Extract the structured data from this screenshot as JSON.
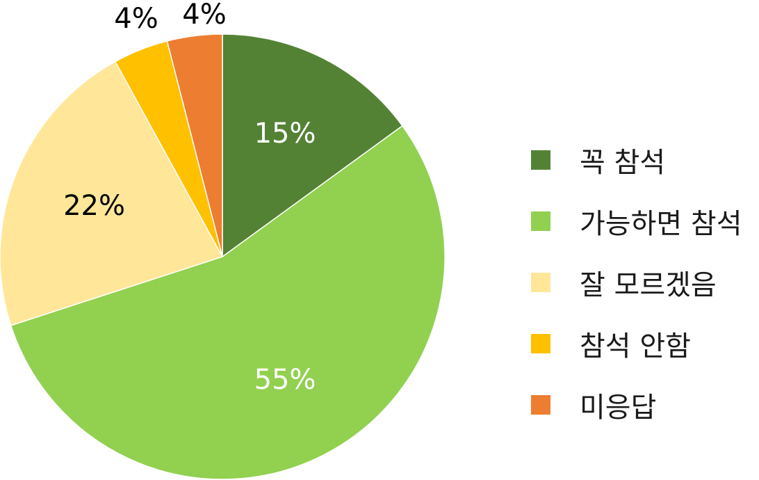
{
  "chart_data": {
    "type": "pie",
    "slices": [
      {
        "label": "꼭 참석",
        "value": 15,
        "display": "15%",
        "color": "#548235",
        "text_color": "#ffffff"
      },
      {
        "label": "가능하면 참석",
        "value": 55,
        "display": "55%",
        "color": "#92d050",
        "text_color": "#ffffff"
      },
      {
        "label": "잘 모르겠음",
        "value": 22,
        "display": "22%",
        "color": "#ffe699",
        "text_color": "#000000"
      },
      {
        "label": "참석 안함",
        "value": 4,
        "display": "4%",
        "color": "#ffc000",
        "text_color": "#000000"
      },
      {
        "label": "미응답",
        "value": 4,
        "display": "4%",
        "color": "#ed7d31",
        "text_color": "#000000"
      }
    ],
    "start": "top",
    "direction": "clockwise",
    "legend_position": "right"
  }
}
